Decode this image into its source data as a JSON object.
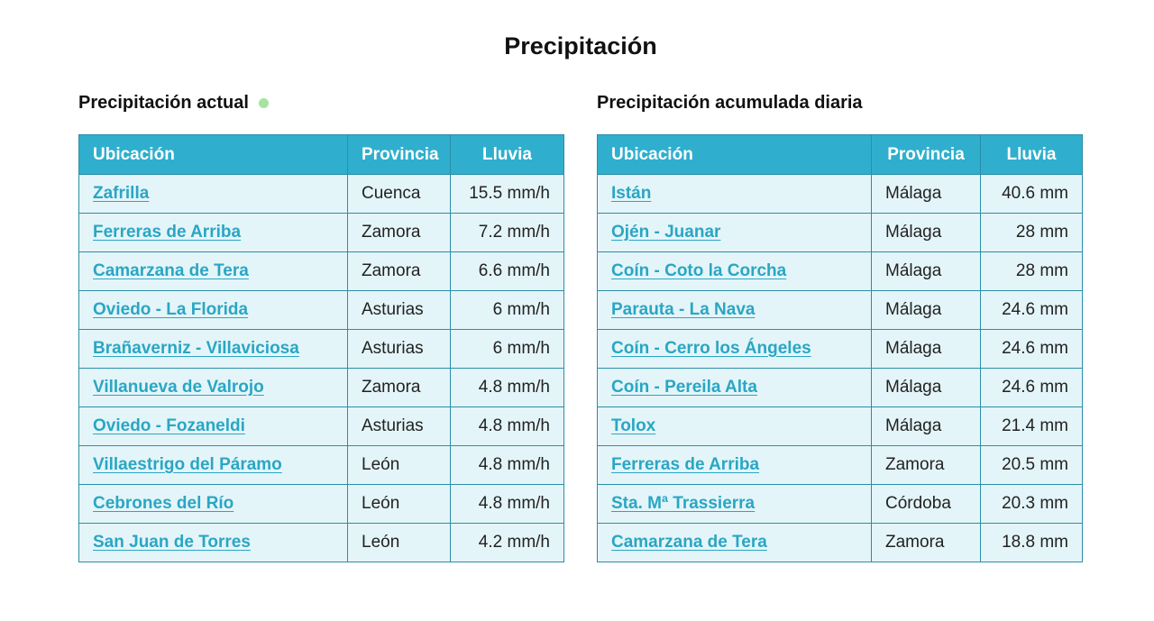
{
  "page": {
    "title": "Precipitación"
  },
  "colors": {
    "header_bg": "#2fafcd",
    "row_bg": "#e4f5f9",
    "link": "#2aa6c4",
    "live_dot": "#a6e3a1"
  },
  "current": {
    "title": "Precipitación actual",
    "status_icon": "green-dot-icon",
    "headers": {
      "location": "Ubicación",
      "province": "Provincia",
      "rain": "Lluvia"
    },
    "rows": [
      {
        "location": "Zafrilla",
        "province": "Cuenca",
        "rain": "15.5 mm/h"
      },
      {
        "location": "Ferreras de Arriba",
        "province": "Zamora",
        "rain": "7.2 mm/h"
      },
      {
        "location": "Camarzana de Tera",
        "province": "Zamora",
        "rain": "6.6 mm/h"
      },
      {
        "location": "Oviedo - La Florida",
        "province": "Asturias",
        "rain": "6 mm/h"
      },
      {
        "location": "Brañaverniz - Villaviciosa",
        "province": "Asturias",
        "rain": "6 mm/h"
      },
      {
        "location": "Villanueva de Valrojo",
        "province": "Zamora",
        "rain": "4.8 mm/h"
      },
      {
        "location": "Oviedo - Fozaneldi",
        "province": "Asturias",
        "rain": "4.8 mm/h"
      },
      {
        "location": "Villaestrigo del Páramo",
        "province": "León",
        "rain": "4.8 mm/h"
      },
      {
        "location": "Cebrones del Río",
        "province": "León",
        "rain": "4.8 mm/h"
      },
      {
        "location": "San Juan de Torres",
        "province": "León",
        "rain": "4.2 mm/h"
      }
    ]
  },
  "daily": {
    "title": "Precipitación acumulada diaria",
    "headers": {
      "location": "Ubicación",
      "province": "Provincia",
      "rain": "Lluvia"
    },
    "rows": [
      {
        "location": "Istán",
        "province": "Málaga",
        "rain": "40.6 mm"
      },
      {
        "location": "Ojén - Juanar",
        "province": "Málaga",
        "rain": "28 mm"
      },
      {
        "location": "Coín - Coto la Corcha",
        "province": "Málaga",
        "rain": "28 mm"
      },
      {
        "location": "Parauta - La Nava",
        "province": "Málaga",
        "rain": "24.6 mm"
      },
      {
        "location": "Coín - Cerro los Ángeles",
        "province": "Málaga",
        "rain": "24.6 mm"
      },
      {
        "location": "Coín - Pereila Alta",
        "province": "Málaga",
        "rain": "24.6 mm"
      },
      {
        "location": "Tolox",
        "province": "Málaga",
        "rain": "21.4 mm"
      },
      {
        "location": "Ferreras de Arriba",
        "province": "Zamora",
        "rain": "20.5 mm"
      },
      {
        "location": "Sta. Mª Trassierra",
        "province": "Córdoba",
        "rain": "20.3 mm"
      },
      {
        "location": "Camarzana de Tera",
        "province": "Zamora",
        "rain": "18.8 mm"
      }
    ]
  }
}
